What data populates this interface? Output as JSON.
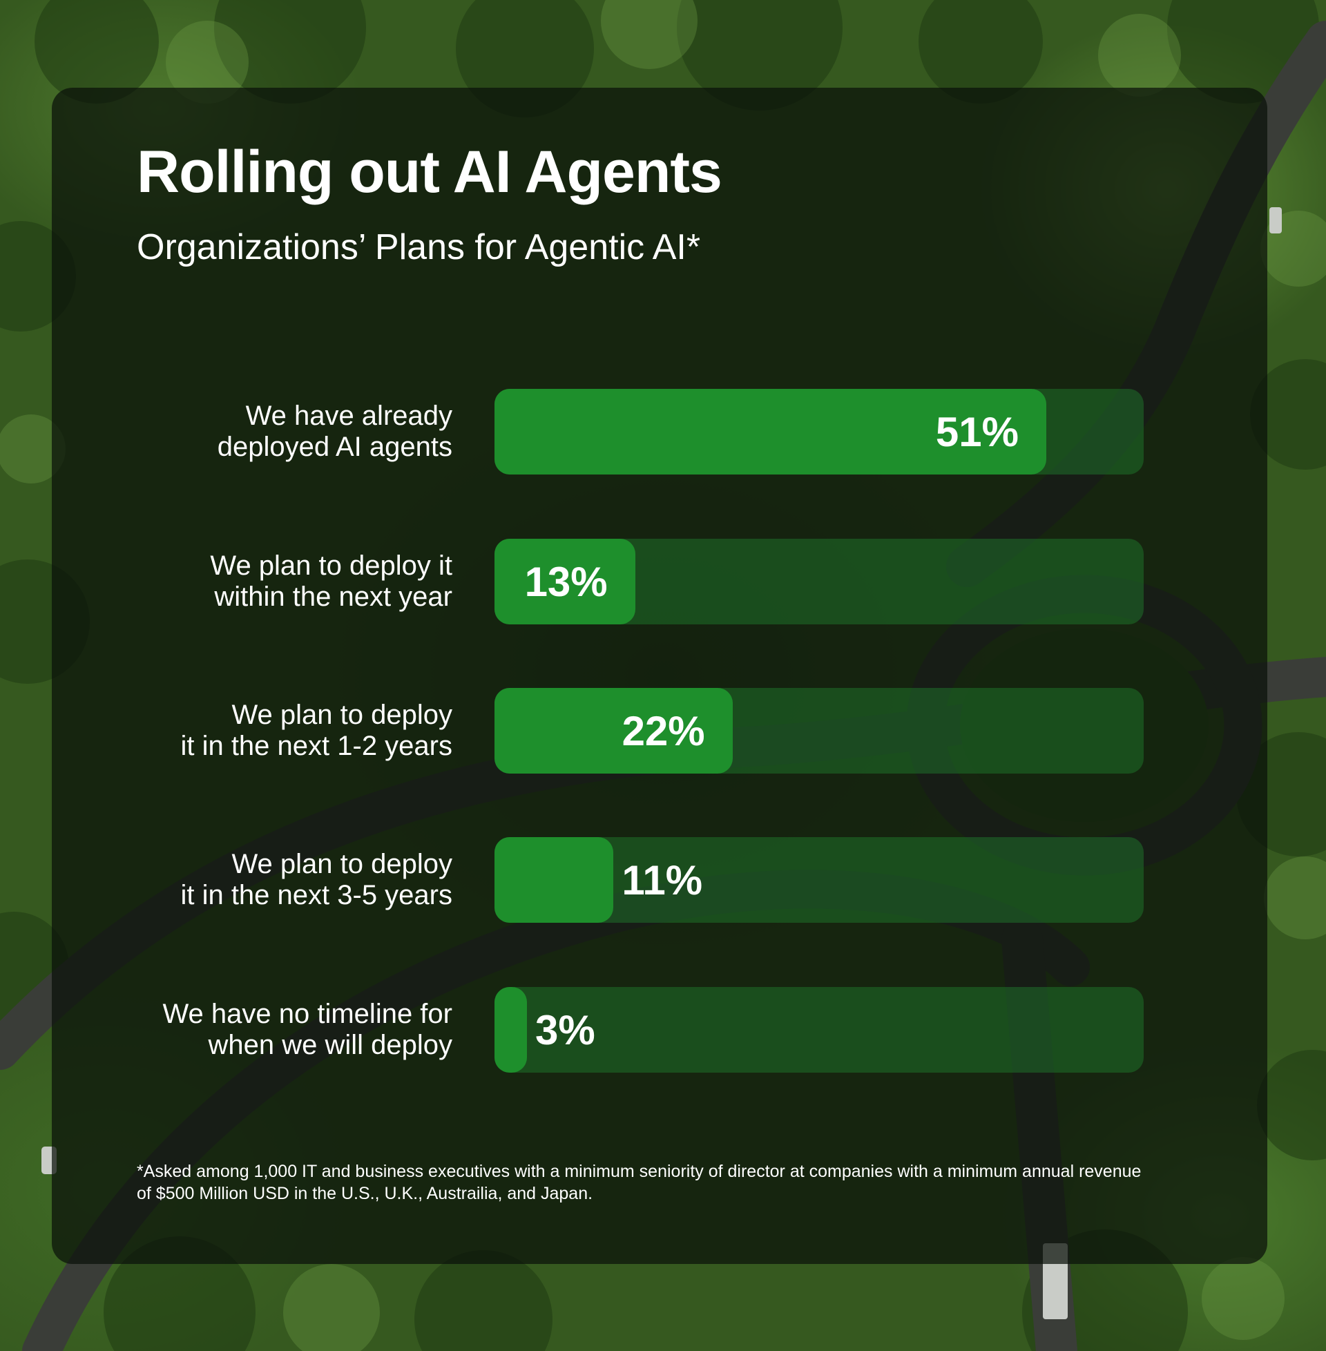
{
  "chart_data": {
    "type": "bar",
    "orientation": "horizontal",
    "title": "Rolling out AI Agents",
    "subtitle": "Organizations’ Plans for Agentic AI*",
    "categories": [
      "We have already\ndeployed AI agents",
      "We plan to deploy it\nwithin the next year",
      "We plan to deploy\nit in the next 1-2 years",
      "We plan to deploy\nit in the next 3-5 years",
      "We have no timeline for\nwhen we will deploy"
    ],
    "values": [
      51,
      13,
      22,
      11,
      3
    ],
    "value_labels": [
      "51%",
      "13%",
      "22%",
      "11%",
      "3%"
    ],
    "xlim": [
      0,
      60
    ],
    "grid": false,
    "footnote": "*Asked among 1,000 IT and business executives with a minimum seniority of director at companies with a minimum annual revenue of $500 Million USD in the U.S., U.K., Austrailia, and Japan."
  },
  "colors": {
    "bar_fill": "#1e8f2c",
    "bar_track": "rgba(34,148,52,0.38)",
    "panel": "rgba(10,16,10,0.72)",
    "text": "#ffffff"
  }
}
